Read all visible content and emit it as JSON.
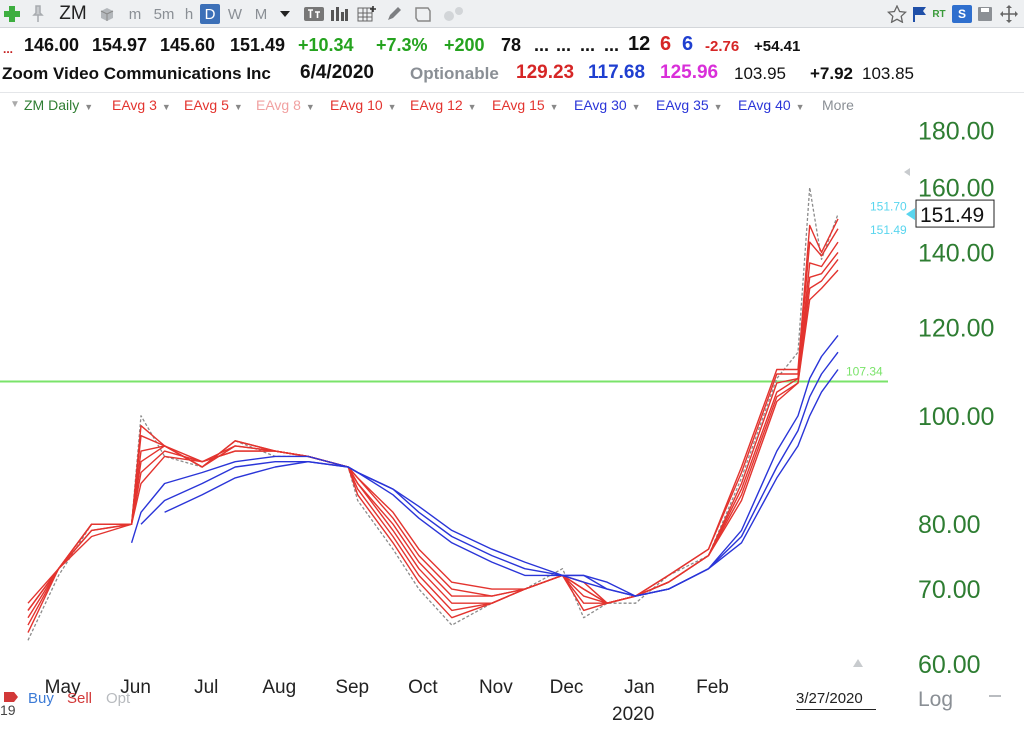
{
  "toolbar": {
    "symbol": "ZM",
    "timeframes": [
      "m",
      "5m",
      "h",
      "D",
      "W",
      "M"
    ],
    "selected_timeframe": "D",
    "rt_label": "RT",
    "s_label": "S"
  },
  "quote_row": {
    "prefix": "...",
    "open": "146.00",
    "high": "154.97",
    "low": "145.60",
    "last": "151.49",
    "change": "+10.34",
    "change_pct": "+7.3%",
    "vol_change": "+200",
    "val1": "78",
    "dots1": "...",
    "dots2": "...",
    "dots3": "...",
    "dots4": "...",
    "n1": "12",
    "n2": "6",
    "n3": "6",
    "neg": "-2.76",
    "pos": "+54.41"
  },
  "info_row": {
    "company": "Zoom Video Communications Inc",
    "date": "6/4/2020",
    "optionable": "Optionable",
    "v1": "129.23",
    "v2": "117.68",
    "v3": "125.96",
    "v4": "103.95",
    "v5": "+7.92",
    "v6": "103.85"
  },
  "colors": {
    "short_ema": "#e3342f",
    "long_ema": "#2a35d8",
    "price_dash": "#8c8c8c",
    "level_line": "#7ae36a",
    "axis_text": "#2e7d32",
    "label_cyan": "#59d5ee"
  },
  "indicators": [
    {
      "label": "ZM Daily",
      "color": "#2e7d32"
    },
    {
      "label": "EAvg 3",
      "color": "#e3342f"
    },
    {
      "label": "EAvg 5",
      "color": "#e3342f"
    },
    {
      "label": "EAvg 8",
      "color": "#f1a1a1"
    },
    {
      "label": "EAvg 10",
      "color": "#e3342f"
    },
    {
      "label": "EAvg 12",
      "color": "#e3342f"
    },
    {
      "label": "EAvg 15",
      "color": "#e3342f"
    },
    {
      "label": "EAvg 30",
      "color": "#2a35d8"
    },
    {
      "label": "EAvg 35",
      "color": "#2a35d8"
    },
    {
      "label": "EAvg 40",
      "color": "#2a35d8"
    },
    {
      "label": "More",
      "color": "#8a8f95"
    }
  ],
  "footer": {
    "year_left": "19",
    "buy": "Buy",
    "sell": "Sell",
    "opt": "Opt",
    "current_date": "3/27/2020",
    "log": "Log"
  },
  "chart_data": {
    "type": "line",
    "symbol": "ZM",
    "interval": "Daily",
    "scale": "log",
    "ylim": [
      60,
      185
    ],
    "y_ticks": [
      "180.00",
      "160.00",
      "140.00",
      "120.00",
      "100.00",
      "80.00",
      "70.00",
      "60.00"
    ],
    "y_tick_values": [
      180,
      160,
      140,
      120,
      100,
      80,
      70,
      60
    ],
    "x_month_labels": [
      "May",
      "Jun",
      "Jul",
      "Aug",
      "Sep",
      "Oct",
      "Nov",
      "Dec",
      "Jan",
      "Feb"
    ],
    "x_year_label": "2020",
    "last_price": "151.49",
    "price_markers": [
      "151.70",
      "151.49"
    ],
    "horizontal_line": {
      "label": "107.34",
      "value": 107.34
    },
    "grid": false,
    "legend_position": "top",
    "x_dates": [
      "2019-04-18",
      "2019-05-01",
      "2019-05-15",
      "2019-06-01",
      "2019-06-05",
      "2019-06-15",
      "2019-07-01",
      "2019-07-15",
      "2019-08-01",
      "2019-08-15",
      "2019-09-01",
      "2019-09-05",
      "2019-09-20",
      "2019-10-01",
      "2019-10-15",
      "2019-11-01",
      "2019-11-15",
      "2019-12-01",
      "2019-12-10",
      "2019-12-20",
      "2020-01-01",
      "2020-01-15",
      "2020-02-01",
      "2020-02-15",
      "2020-03-01",
      "2020-03-10",
      "2020-03-15",
      "2020-03-20",
      "2020-03-27"
    ],
    "series": [
      {
        "name": "ZM Daily",
        "values": [
          63,
          72,
          80,
          80,
          100,
          92,
          90,
          95,
          92,
          92,
          90,
          84,
          76,
          70,
          65,
          68,
          70,
          73,
          66,
          68,
          68,
          72,
          75,
          88,
          108,
          114,
          160,
          138,
          151.49
        ]
      },
      {
        "name": "EAvg 3",
        "values": [
          64,
          73,
          80,
          80,
          98,
          94,
          90,
          95,
          93,
          92,
          90,
          85,
          77,
          71,
          66,
          68,
          70,
          72,
          67,
          68,
          69,
          72,
          76,
          90,
          110,
          110,
          148,
          140,
          150
        ]
      },
      {
        "name": "EAvg 5",
        "values": [
          65,
          73,
          80,
          80,
          96,
          94,
          90,
          95,
          93,
          92,
          90,
          86,
          78,
          72,
          67,
          68,
          70,
          72,
          68,
          68,
          69,
          72,
          76,
          89,
          109,
          109,
          143,
          139,
          147
        ]
      },
      {
        "name": "EAvg 8",
        "values": [
          66,
          73,
          80,
          80,
          93,
          94,
          90,
          94,
          93,
          92,
          90,
          87,
          79,
          73,
          68,
          68,
          70,
          72,
          69,
          68,
          69,
          71,
          75,
          87,
          107,
          108,
          137,
          136,
          143
        ]
      },
      {
        "name": "EAvg 10",
        "values": [
          67,
          73,
          79,
          80,
          91,
          94,
          91,
          94,
          93,
          92,
          90,
          87,
          80,
          74,
          69,
          69,
          70,
          72,
          70,
          68,
          69,
          71,
          75,
          86,
          105,
          108,
          133,
          134,
          140
        ]
      },
      {
        "name": "EAvg 12",
        "values": [
          67,
          73,
          79,
          80,
          89,
          93,
          91,
          93,
          93,
          92,
          90,
          88,
          81,
          75,
          70,
          69,
          70,
          72,
          70,
          68,
          69,
          71,
          75,
          85,
          104,
          107,
          130,
          132,
          138
        ]
      },
      {
        "name": "EAvg 15",
        "values": [
          68,
          73,
          78,
          80,
          87,
          92,
          91,
          93,
          93,
          92,
          90,
          88,
          82,
          76,
          71,
          70,
          70,
          72,
          71,
          68,
          69,
          71,
          75,
          84,
          103,
          107,
          127,
          130,
          135
        ]
      },
      {
        "name": "EAvg 30",
        "values": [
          null,
          null,
          null,
          77,
          82,
          87,
          89,
          91,
          92,
          92,
          90,
          89,
          85,
          81,
          77,
          74,
          72,
          72,
          71,
          70,
          69,
          70,
          73,
          79,
          93,
          100,
          108,
          113,
          118
        ]
      },
      {
        "name": "EAvg 35",
        "values": [
          null,
          null,
          null,
          null,
          80,
          84,
          87,
          90,
          91,
          91,
          90,
          89,
          86,
          82,
          78,
          75,
          73,
          72,
          72,
          70,
          69,
          70,
          73,
          78,
          90,
          97,
          104,
          109,
          114
        ]
      },
      {
        "name": "EAvg 40",
        "values": [
          null,
          null,
          null,
          null,
          null,
          82,
          85,
          88,
          90,
          91,
          90,
          89,
          86,
          83,
          79,
          76,
          74,
          72,
          72,
          71,
          69,
          70,
          73,
          77,
          88,
          94,
          100,
          105,
          110
        ]
      }
    ]
  }
}
